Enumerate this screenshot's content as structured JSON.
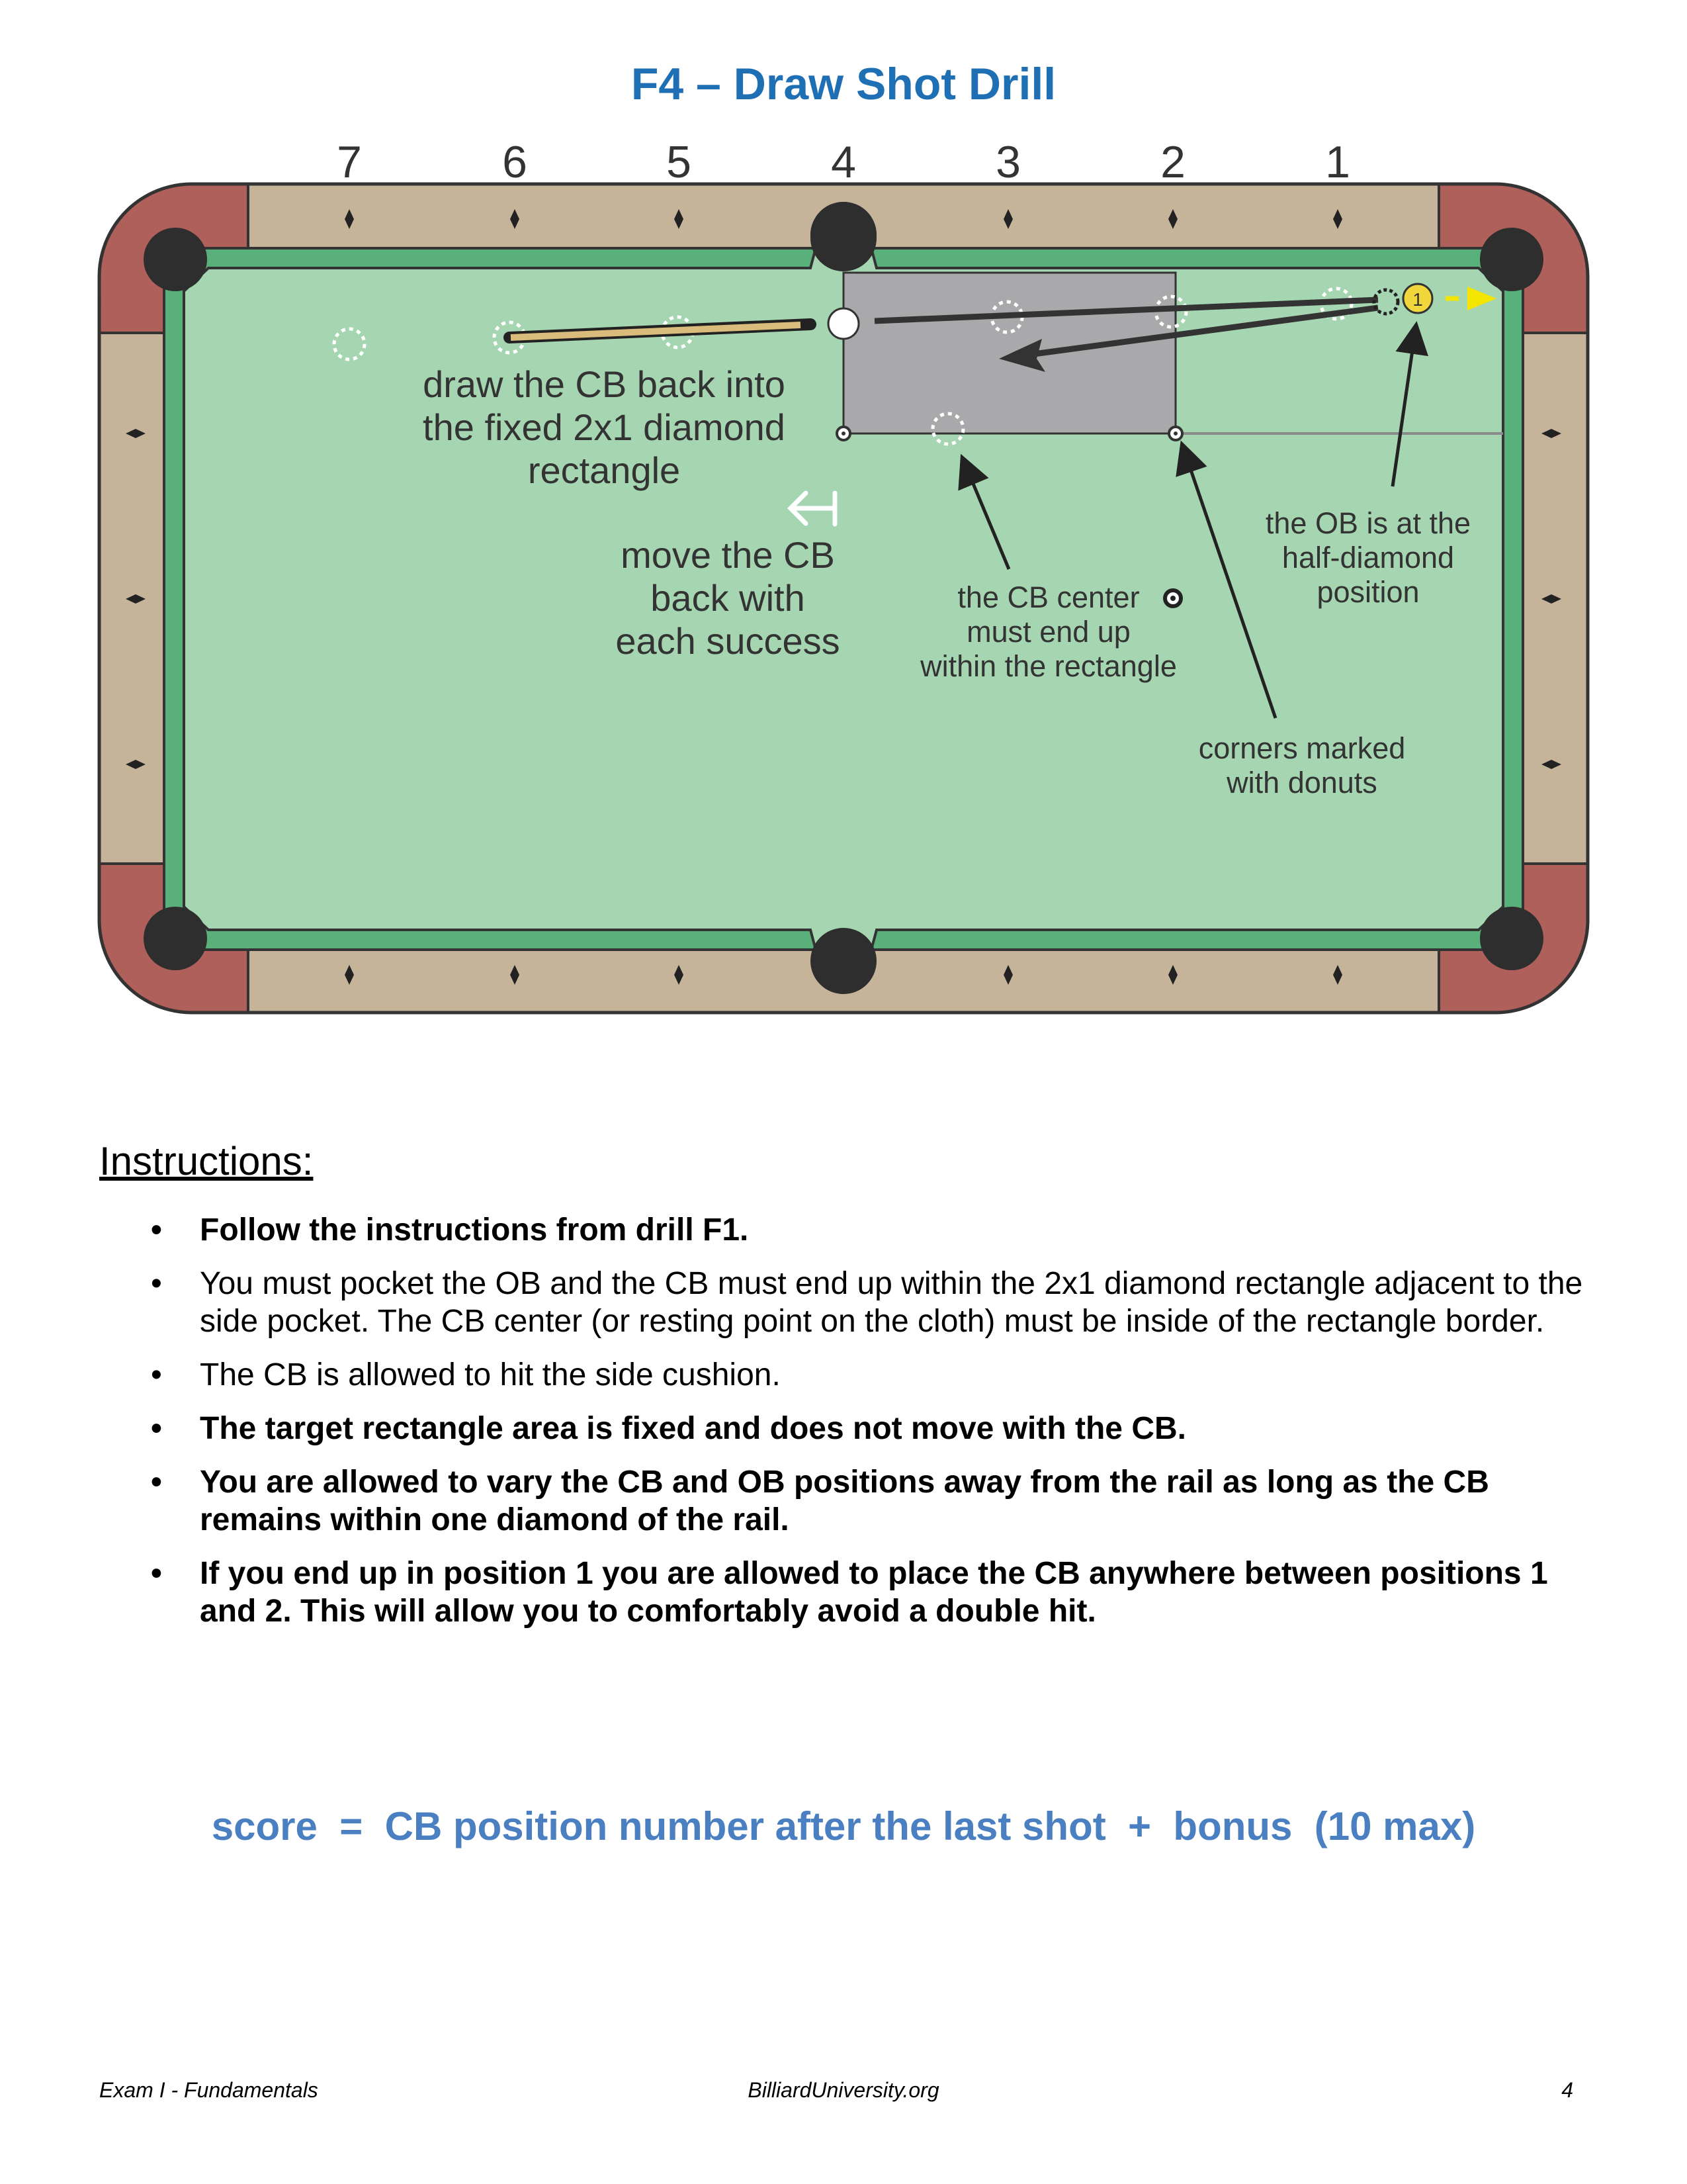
{
  "title": "F4 – Draw Shot Drill",
  "diagram": {
    "position_numbers": [
      "7",
      "6",
      "5",
      "4",
      "3",
      "2",
      "1"
    ],
    "ball_number": "1",
    "annotations": {
      "draw_back": [
        "draw the CB back into",
        "the fixed 2x1 diamond",
        "rectangle"
      ],
      "move_back": [
        "move the CB",
        "back with",
        "each success"
      ],
      "cb_center": [
        "the CB center",
        "must end up",
        "within the rectangle"
      ],
      "ob_position": [
        "the OB is at the",
        "half-diamond",
        "position"
      ],
      "corners": [
        "corners marked",
        "with donuts"
      ]
    },
    "colors": {
      "cloth": "#a6d6b1",
      "cushion": "#5ab07a",
      "rail": "#c5b49a",
      "corner_rail": "#b0605a",
      "target_rectangle": "#a9a9ab",
      "title_blue": "#1f6fb5",
      "object_ball": "#f2d73c",
      "arrow_yellow": "#f4e500"
    }
  },
  "instructions": {
    "heading": "Instructions:",
    "bullet_symbol": "•",
    "items": [
      {
        "text": "Follow the instructions from drill F1.",
        "bold": true
      },
      {
        "text": "You must pocket the OB and the CB must end up within the 2x1 diamond rectangle adjacent to the side pocket.  The CB center (or resting point on the cloth) must be inside of the rectangle border.",
        "bold": false
      },
      {
        "text": "The CB is allowed to hit the side cushion.",
        "bold": false
      },
      {
        "text": "The target rectangle area is fixed and does not move with the CB.",
        "bold": true
      },
      {
        "text": "You are allowed to vary the CB and OB positions away from the rail as long as the CB remains within one diamond of the rail.",
        "bold": true
      },
      {
        "text": "If you end up in position 1 you are allowed to place the CB anywhere between positions 1 and 2.  This will allow you to comfortably avoid a double hit.",
        "bold": true
      }
    ]
  },
  "score": "score  =  CB position number after the last shot  +  bonus  (10 max)",
  "footer": {
    "left": "Exam I - Fundamentals",
    "center": "BilliardUniversity.org",
    "right": "4"
  }
}
